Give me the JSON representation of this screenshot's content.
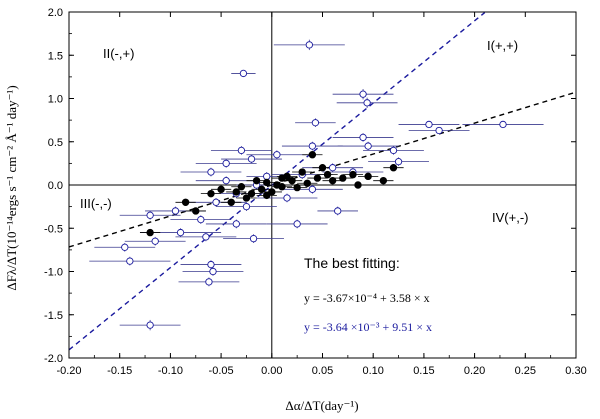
{
  "chart_data": {
    "type": "scatter",
    "x_axis": {
      "label": "Δα/ΔT(day⁻¹)",
      "xlim": [
        -0.2,
        0.3
      ],
      "ticks": [
        -0.2,
        -0.15,
        -0.1,
        -0.05,
        0.0,
        0.05,
        0.1,
        0.15,
        0.2,
        0.25,
        0.3
      ],
      "tick_labels": [
        "-0.20",
        "-0.15",
        "-0.10",
        "-0.05",
        "0.00",
        "0.05",
        "0.10",
        "0.15",
        "0.20",
        "0.25",
        "0.30"
      ]
    },
    "y_axis": {
      "label": "ΔFλ/ΔT(10⁻¹⁴ergs s⁻¹ cm⁻² Å⁻¹ day⁻¹)",
      "ylim": [
        -2.0,
        2.0
      ],
      "ticks": [
        -2.0,
        -1.5,
        -1.0,
        -0.5,
        0.0,
        0.5,
        1.0,
        1.5,
        2.0
      ],
      "tick_labels": [
        "-2.0",
        "-1.5",
        "-1.0",
        "-0.5",
        "0.0",
        "0.5",
        "1.0",
        "1.5",
        "2.0"
      ]
    },
    "quadrant_labels": {
      "top_left": "II(-,+)",
      "top_right": "I(+,+)",
      "bottom_left": "III(-,-)",
      "bottom_right": "IV(+,-)"
    },
    "annotation": {
      "title": "The best fitting:",
      "eq_black": "y = -3.67×10⁻⁴ + 3.58 × x",
      "eq_blue": "y = -3.64 ×10⁻³ + 9.51 × x"
    },
    "fits": [
      {
        "name": "black dashed fit",
        "color": "#000000",
        "intercept": -0.000367,
        "slope": 3.58
      },
      {
        "name": "blue dashed fit",
        "color": "#1a1a9e",
        "intercept": -0.00364,
        "slope": 9.51
      }
    ],
    "series": [
      {
        "name": "open circles",
        "marker": "open-circle",
        "color": "#1a1a9e",
        "points": [
          {
            "x": 0.037,
            "y": 1.62,
            "xerr": 0.035,
            "yerr": 0.06
          },
          {
            "x": -0.028,
            "y": 1.29,
            "xerr": 0.012,
            "yerr": 0.04
          },
          {
            "x": 0.09,
            "y": 1.05,
            "xerr": 0.03,
            "yerr": 0.06
          },
          {
            "x": 0.094,
            "y": 0.95,
            "xerr": 0.03,
            "yerr": 0.06
          },
          {
            "x": 0.043,
            "y": 0.72,
            "xerr": 0.02,
            "yerr": 0.05
          },
          {
            "x": 0.155,
            "y": 0.7,
            "xerr": 0.03,
            "yerr": 0.04
          },
          {
            "x": 0.165,
            "y": 0.63,
            "xerr": 0.03,
            "yerr": 0.04
          },
          {
            "x": 0.228,
            "y": 0.7,
            "xerr": 0.04,
            "yerr": 0.04
          },
          {
            "x": 0.09,
            "y": 0.55,
            "xerr": 0.03,
            "yerr": 0.05
          },
          {
            "x": 0.095,
            "y": 0.45,
            "xerr": 0.03,
            "yerr": 0.05
          },
          {
            "x": 0.12,
            "y": 0.4,
            "xerr": 0.03,
            "yerr": 0.05
          },
          {
            "x": 0.04,
            "y": 0.45,
            "xerr": 0.03,
            "yerr": 0.05
          },
          {
            "x": -0.03,
            "y": 0.4,
            "xerr": 0.03,
            "yerr": 0.05
          },
          {
            "x": -0.02,
            "y": 0.3,
            "xerr": 0.03,
            "yerr": 0.05
          },
          {
            "x": 0.005,
            "y": 0.35,
            "xerr": 0.03,
            "yerr": 0.05
          },
          {
            "x": 0.125,
            "y": 0.27,
            "xerr": 0.03,
            "yerr": 0.05
          },
          {
            "x": -0.045,
            "y": 0.25,
            "xerr": 0.03,
            "yerr": 0.05
          },
          {
            "x": 0.06,
            "y": 0.2,
            "xerr": 0.03,
            "yerr": 0.05
          },
          {
            "x": 0.08,
            "y": 0.15,
            "xerr": 0.03,
            "yerr": 0.05
          },
          {
            "x": -0.005,
            "y": 0.1,
            "xerr": 0.02,
            "yerr": 0.05
          },
          {
            "x": 0.03,
            "y": 0.12,
            "xerr": 0.03,
            "yerr": 0.05
          },
          {
            "x": -0.06,
            "y": 0.15,
            "xerr": 0.03,
            "yerr": 0.05
          },
          {
            "x": -0.045,
            "y": 0.05,
            "xerr": 0.03,
            "yerr": 0.05
          },
          {
            "x": -0.015,
            "y": 0.0,
            "xerr": 0.02,
            "yerr": 0.05
          },
          {
            "x": 0.04,
            "y": -0.05,
            "xerr": 0.03,
            "yerr": 0.05
          },
          {
            "x": -0.035,
            "y": -0.1,
            "xerr": 0.03,
            "yerr": 0.05
          },
          {
            "x": 0.015,
            "y": -0.15,
            "xerr": 0.03,
            "yerr": 0.05
          },
          {
            "x": -0.055,
            "y": -0.2,
            "xerr": 0.03,
            "yerr": 0.05
          },
          {
            "x": -0.025,
            "y": -0.25,
            "xerr": 0.03,
            "yerr": 0.05
          },
          {
            "x": 0.065,
            "y": -0.3,
            "xerr": 0.02,
            "yerr": 0.05
          },
          {
            "x": -0.095,
            "y": -0.3,
            "xerr": 0.03,
            "yerr": 0.05
          },
          {
            "x": -0.12,
            "y": -0.35,
            "xerr": 0.03,
            "yerr": 0.05
          },
          {
            "x": -0.07,
            "y": -0.4,
            "xerr": 0.03,
            "yerr": 0.05
          },
          {
            "x": -0.035,
            "y": -0.45,
            "xerr": 0.03,
            "yerr": 0.05
          },
          {
            "x": 0.025,
            "y": -0.45,
            "xerr": 0.03,
            "yerr": 0.05
          },
          {
            "x": -0.09,
            "y": -0.55,
            "xerr": 0.04,
            "yerr": 0.05
          },
          {
            "x": -0.065,
            "y": -0.6,
            "xerr": 0.03,
            "yerr": 0.05
          },
          {
            "x": -0.018,
            "y": -0.62,
            "xerr": 0.03,
            "yerr": 0.05
          },
          {
            "x": -0.115,
            "y": -0.65,
            "xerr": 0.03,
            "yerr": 0.05
          },
          {
            "x": -0.145,
            "y": -0.72,
            "xerr": 0.03,
            "yerr": 0.05
          },
          {
            "x": -0.14,
            "y": -0.88,
            "xerr": 0.04,
            "yerr": 0.05
          },
          {
            "x": -0.06,
            "y": -0.92,
            "xerr": 0.03,
            "yerr": 0.05
          },
          {
            "x": -0.058,
            "y": -1.0,
            "xerr": 0.03,
            "yerr": 0.05
          },
          {
            "x": -0.062,
            "y": -1.12,
            "xerr": 0.03,
            "yerr": 0.05
          },
          {
            "x": -0.12,
            "y": -1.62,
            "xerr": 0.03,
            "yerr": 0.06
          }
        ]
      },
      {
        "name": "filled circles",
        "marker": "filled-circle",
        "color": "#000000",
        "points": [
          {
            "x": -0.12,
            "y": -0.55,
            "xerr": 0.01,
            "yerr": 0.03
          },
          {
            "x": -0.085,
            "y": -0.2,
            "xerr": 0.01,
            "yerr": 0.03
          },
          {
            "x": -0.075,
            "y": -0.3,
            "xerr": 0.01,
            "yerr": 0.03
          },
          {
            "x": -0.06,
            "y": -0.1,
            "xerr": 0.01,
            "yerr": 0.03
          },
          {
            "x": -0.05,
            "y": -0.05,
            "xerr": 0.01,
            "yerr": 0.03
          },
          {
            "x": -0.04,
            "y": -0.2,
            "xerr": 0.01,
            "yerr": 0.03
          },
          {
            "x": -0.035,
            "y": -0.08,
            "xerr": 0.01,
            "yerr": 0.03
          },
          {
            "x": -0.03,
            "y": -0.02,
            "xerr": 0.01,
            "yerr": 0.03
          },
          {
            "x": -0.02,
            "y": -0.1,
            "xerr": 0.01,
            "yerr": 0.03
          },
          {
            "x": -0.015,
            "y": 0.05,
            "xerr": 0.01,
            "yerr": 0.03
          },
          {
            "x": -0.01,
            "y": -0.05,
            "xerr": 0.01,
            "yerr": 0.03
          },
          {
            "x": -0.005,
            "y": -0.12,
            "xerr": 0.01,
            "yerr": 0.03
          },
          {
            "x": 0.0,
            "y": -0.08,
            "xerr": 0.01,
            "yerr": 0.03
          },
          {
            "x": 0.005,
            "y": 0.0,
            "xerr": 0.01,
            "yerr": 0.03
          },
          {
            "x": 0.01,
            "y": -0.02,
            "xerr": 0.01,
            "yerr": 0.03
          },
          {
            "x": 0.015,
            "y": 0.1,
            "xerr": 0.01,
            "yerr": 0.03
          },
          {
            "x": 0.02,
            "y": 0.05,
            "xerr": 0.01,
            "yerr": 0.03
          },
          {
            "x": 0.025,
            "y": -0.03,
            "xerr": 0.01,
            "yerr": 0.03
          },
          {
            "x": 0.03,
            "y": 0.15,
            "xerr": 0.01,
            "yerr": 0.03
          },
          {
            "x": 0.035,
            "y": 0.02,
            "xerr": 0.01,
            "yerr": 0.03
          },
          {
            "x": 0.04,
            "y": 0.35,
            "xerr": 0.01,
            "yerr": 0.03
          },
          {
            "x": 0.045,
            "y": 0.08,
            "xerr": 0.01,
            "yerr": 0.03
          },
          {
            "x": 0.05,
            "y": 0.2,
            "xerr": 0.01,
            "yerr": 0.03
          },
          {
            "x": 0.06,
            "y": 0.05,
            "xerr": 0.01,
            "yerr": 0.03
          },
          {
            "x": 0.07,
            "y": 0.08,
            "xerr": 0.01,
            "yerr": 0.03
          },
          {
            "x": 0.08,
            "y": 0.12,
            "xerr": 0.01,
            "yerr": 0.03
          },
          {
            "x": 0.085,
            "y": 0.0,
            "xerr": 0.01,
            "yerr": 0.03
          },
          {
            "x": 0.095,
            "y": 0.1,
            "xerr": 0.01,
            "yerr": 0.03
          },
          {
            "x": 0.11,
            "y": 0.05,
            "xerr": 0.01,
            "yerr": 0.03
          },
          {
            "x": 0.12,
            "y": 0.2,
            "xerr": 0.01,
            "yerr": 0.03
          },
          {
            "x": -0.005,
            "y": 0.03,
            "xerr": 0.01,
            "yerr": 0.03
          },
          {
            "x": -0.025,
            "y": -0.15,
            "xerr": 0.01,
            "yerr": 0.03
          },
          {
            "x": 0.01,
            "y": 0.08,
            "xerr": 0.01,
            "yerr": 0.03
          },
          {
            "x": 0.055,
            "y": 0.12,
            "xerr": 0.01,
            "yerr": 0.03
          }
        ]
      }
    ]
  }
}
